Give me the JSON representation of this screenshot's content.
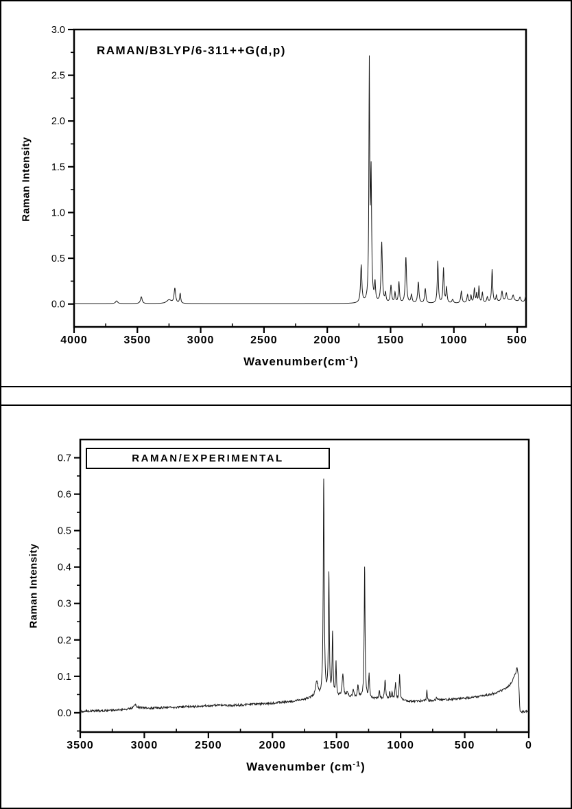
{
  "figure": {
    "background": "#ffffff",
    "border_color": "#000000",
    "curve_color": "#1a1a1a"
  },
  "chart_data": [
    {
      "type": "line",
      "title": "RAMAN/B3LYP/6-311++G(d,p)",
      "ylabel": "Raman Intensity",
      "xlabel": "Wavenumber(cm⁻¹)",
      "xlabel_prefix": "Wavenumber(cm",
      "xlabel_sup": "-1",
      "xlabel_suffix": ")",
      "x_reversed": true,
      "x_range": [
        4000,
        430
      ],
      "x_ticks": [
        4000,
        3500,
        3000,
        2500,
        2000,
        1500,
        1000,
        500
      ],
      "x_minor_step": 250,
      "x_tick_decimals": 0,
      "y_range": [
        -0.25,
        3.0
      ],
      "y_ticks": [
        0.0,
        0.5,
        1.0,
        1.5,
        2.0,
        2.5,
        3.0
      ],
      "y_minor_step": 0.25,
      "y_tick_decimals": 1,
      "grid": false,
      "legend": null,
      "line_color": "#1a1a1a",
      "baseline": 0.004,
      "noise_amplitude": 0,
      "peaks_format": [
        "wavenumber_cm-1",
        "intensity",
        "half_width_cm-1"
      ],
      "peaks": [
        [
          3664,
          0.03,
          10
        ],
        [
          3469,
          0.075,
          8
        ],
        [
          3250,
          0.04,
          22
        ],
        [
          3204,
          0.165,
          7
        ],
        [
          3162,
          0.11,
          5
        ],
        [
          1732,
          0.41,
          6
        ],
        [
          1668,
          2.55,
          4
        ],
        [
          1654,
          1.35,
          5
        ],
        [
          1623,
          0.2,
          5
        ],
        [
          1570,
          0.66,
          6
        ],
        [
          1540,
          0.1,
          5
        ],
        [
          1497,
          0.19,
          6
        ],
        [
          1465,
          0.11,
          5
        ],
        [
          1434,
          0.23,
          5
        ],
        [
          1379,
          0.5,
          6
        ],
        [
          1335,
          0.09,
          6
        ],
        [
          1281,
          0.23,
          6
        ],
        [
          1226,
          0.16,
          6
        ],
        [
          1127,
          0.46,
          5
        ],
        [
          1082,
          0.38,
          5
        ],
        [
          1058,
          0.17,
          5
        ],
        [
          1010,
          0.04,
          7
        ],
        [
          941,
          0.13,
          6
        ],
        [
          892,
          0.09,
          6
        ],
        [
          865,
          0.08,
          5
        ],
        [
          838,
          0.16,
          5
        ],
        [
          820,
          0.1,
          4
        ],
        [
          802,
          0.18,
          4
        ],
        [
          775,
          0.11,
          5
        ],
        [
          736,
          0.06,
          6
        ],
        [
          698,
          0.36,
          5
        ],
        [
          664,
          0.07,
          5
        ],
        [
          620,
          0.11,
          6
        ],
        [
          586,
          0.08,
          6
        ],
        [
          560,
          0.035,
          90
        ],
        [
          532,
          0.06,
          7
        ],
        [
          478,
          0.05,
          7
        ],
        [
          432,
          0.07,
          7
        ]
      ]
    },
    {
      "type": "line",
      "title": "RAMAN/EXPERIMENTAL",
      "title_boxed": true,
      "ylabel": "Raman Intensity",
      "xlabel": "Wavenumber (cm⁻¹)",
      "xlabel_prefix": "Wavenumber (cm",
      "xlabel_sup": "-1",
      "xlabel_suffix": ")",
      "x_reversed": true,
      "x_range": [
        3500,
        0
      ],
      "x_ticks": [
        3500,
        3000,
        2500,
        2000,
        1500,
        1000,
        500,
        0
      ],
      "x_minor_step": 250,
      "x_tick_decimals": 0,
      "y_range": [
        -0.053,
        0.75
      ],
      "y_ticks": [
        0.0,
        0.1,
        0.2,
        0.3,
        0.4,
        0.5,
        0.6,
        0.7
      ],
      "y_minor_step": 0.05,
      "y_tick_decimals": 1,
      "grid": false,
      "legend": null,
      "line_color": "#1a1a1a",
      "noise_amplitude": 0.003,
      "baseline_points": [
        [
          3500,
          0.004
        ],
        [
          3400,
          0.005
        ],
        [
          3300,
          0.006
        ],
        [
          3200,
          0.008
        ],
        [
          3130,
          0.01
        ],
        [
          3090,
          0.014
        ],
        [
          3075,
          0.024
        ],
        [
          3058,
          0.017
        ],
        [
          3030,
          0.014
        ],
        [
          2950,
          0.013
        ],
        [
          2850,
          0.014
        ],
        [
          2700,
          0.016
        ],
        [
          2550,
          0.018
        ],
        [
          2430,
          0.021
        ],
        [
          2350,
          0.02
        ],
        [
          2250,
          0.021
        ],
        [
          2150,
          0.023
        ],
        [
          2050,
          0.025
        ],
        [
          1950,
          0.028
        ],
        [
          1850,
          0.031
        ],
        [
          1780,
          0.034
        ],
        [
          1730,
          0.038
        ],
        [
          1700,
          0.041
        ],
        [
          1660,
          0.044
        ],
        [
          1600,
          0.045
        ],
        [
          1550,
          0.044
        ],
        [
          1500,
          0.043
        ],
        [
          1450,
          0.042
        ],
        [
          1400,
          0.04
        ],
        [
          1350,
          0.041
        ],
        [
          1300,
          0.042
        ],
        [
          1250,
          0.04
        ],
        [
          1200,
          0.038
        ],
        [
          1150,
          0.037
        ],
        [
          1100,
          0.036
        ],
        [
          1050,
          0.036
        ],
        [
          1000,
          0.035
        ],
        [
          950,
          0.032
        ],
        [
          900,
          0.031
        ],
        [
          850,
          0.032
        ],
        [
          800,
          0.032
        ],
        [
          750,
          0.033
        ],
        [
          700,
          0.035
        ],
        [
          650,
          0.036
        ],
        [
          600,
          0.037
        ],
        [
          550,
          0.038
        ],
        [
          500,
          0.04
        ],
        [
          450,
          0.042
        ],
        [
          400,
          0.044
        ],
        [
          350,
          0.047
        ],
        [
          300,
          0.05
        ],
        [
          250,
          0.056
        ],
        [
          200,
          0.063
        ],
        [
          170,
          0.069
        ],
        [
          150,
          0.075
        ],
        [
          130,
          0.086
        ],
        [
          115,
          0.097
        ],
        [
          105,
          0.107
        ],
        [
          98,
          0.116
        ],
        [
          92,
          0.122
        ],
        [
          88,
          0.117
        ],
        [
          83,
          0.104
        ],
        [
          79,
          0.083
        ],
        [
          75,
          0.054
        ],
        [
          72,
          0.028
        ],
        [
          70,
          0.012
        ],
        [
          68,
          0.005
        ],
        [
          64,
          0.002
        ],
        [
          55,
          0.002
        ],
        [
          40,
          0.003
        ],
        [
          20,
          0.004
        ],
        [
          0,
          0.001
        ]
      ],
      "peaks_format": [
        "wavenumber_cm-1",
        "intensity",
        "half_width_cm-1"
      ],
      "peaks": [
        [
          1655,
          0.04,
          10
        ],
        [
          1600,
          0.59,
          4.5
        ],
        [
          1560,
          0.33,
          4
        ],
        [
          1531,
          0.17,
          4
        ],
        [
          1504,
          0.09,
          4
        ],
        [
          1451,
          0.06,
          7
        ],
        [
          1415,
          0.015,
          7
        ],
        [
          1370,
          0.022,
          6
        ],
        [
          1333,
          0.032,
          5
        ],
        [
          1281,
          0.36,
          4
        ],
        [
          1246,
          0.065,
          4
        ],
        [
          1166,
          0.022,
          5
        ],
        [
          1121,
          0.055,
          5
        ],
        [
          1085,
          0.02,
          4
        ],
        [
          1067,
          0.018,
          4
        ],
        [
          1040,
          0.045,
          5
        ],
        [
          1008,
          0.07,
          4
        ],
        [
          795,
          0.028,
          4
        ],
        [
          719,
          0.008,
          5
        ]
      ]
    }
  ]
}
